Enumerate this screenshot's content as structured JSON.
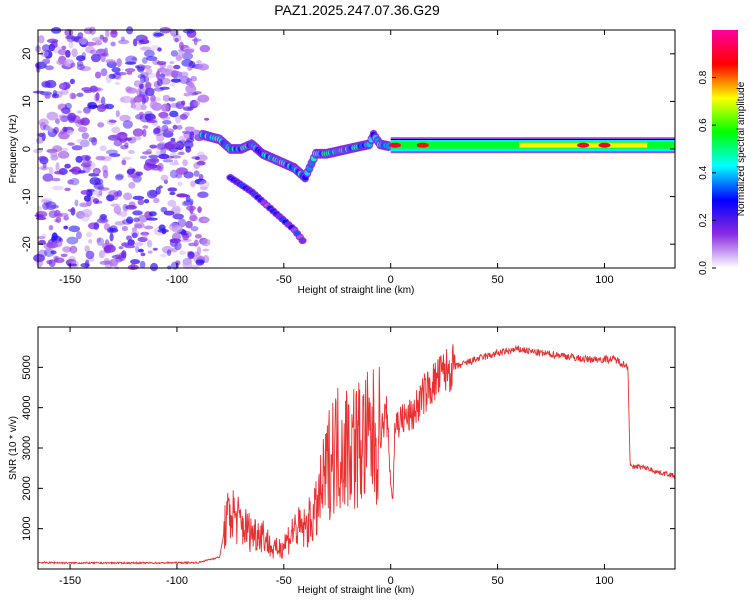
{
  "chart_data": [
    {
      "type": "heatmap",
      "title": "PAZ1.2025.247.07.36.G29",
      "xlabel": "Height of straight line (km)",
      "ylabel": "Frequency (Hz)",
      "xlim": [
        -165,
        133
      ],
      "ylim": [
        -25,
        25
      ],
      "xticks": [
        -150,
        -100,
        -50,
        0,
        50,
        100
      ],
      "yticks": [
        -20,
        -10,
        0,
        10,
        20
      ],
      "colorbar": {
        "label": "Normalized spectral amplitude",
        "range": [
          0,
          1
        ],
        "ticks": [
          0.0,
          0.2,
          0.4,
          0.6,
          0.8
        ],
        "colors": [
          "#ffffff",
          "#8a2be2",
          "#0000ff",
          "#00ffff",
          "#00ff00",
          "#ffff00",
          "#ff0000",
          "#ff00a0"
        ]
      },
      "noise_region": {
        "x": [
          -165,
          -86
        ],
        "y": [
          -25,
          25
        ],
        "amplitude": 0.15
      },
      "ridge": [
        {
          "x": -88,
          "y": 3
        },
        {
          "x": -80,
          "y": 2
        },
        {
          "x": -75,
          "y": 0
        },
        {
          "x": -70,
          "y": 0
        },
        {
          "x": -65,
          "y": 1
        },
        {
          "x": -60,
          "y": -1
        },
        {
          "x": -55,
          "y": -2
        },
        {
          "x": -50,
          "y": -3
        },
        {
          "x": -45,
          "y": -4
        },
        {
          "x": -40,
          "y": -6
        },
        {
          "x": -35,
          "y": -1
        },
        {
          "x": -30,
          "y": -1
        },
        {
          "x": -25,
          "y": -0.5
        },
        {
          "x": -20,
          "y": 0
        },
        {
          "x": -15,
          "y": 0.5
        },
        {
          "x": -10,
          "y": 1
        },
        {
          "x": -8,
          "y": 3
        },
        {
          "x": -5,
          "y": 1
        },
        {
          "x": 0,
          "y": 0.5
        },
        {
          "x": 20,
          "y": 0.5
        },
        {
          "x": 50,
          "y": 0.5
        },
        {
          "x": 80,
          "y": 1
        },
        {
          "x": 110,
          "y": 1
        },
        {
          "x": 133,
          "y": 1
        }
      ],
      "secondary_branch": [
        {
          "x": -75,
          "y": -6
        },
        {
          "x": -65,
          "y": -9
        },
        {
          "x": -55,
          "y": -13
        },
        {
          "x": -45,
          "y": -17
        },
        {
          "x": -40,
          "y": -20
        }
      ]
    },
    {
      "type": "line",
      "xlabel": "Height of straight line (km)",
      "ylabel": "SNR (10 * v/v)",
      "xlim": [
        -165,
        133
      ],
      "ylim": [
        0,
        6000
      ],
      "xticks": [
        -150,
        -100,
        -50,
        0,
        50,
        100
      ],
      "yticks": [
        1000,
        2000,
        3000,
        4000,
        5000
      ],
      "color": "#e83030",
      "x": [
        -165,
        -150,
        -130,
        -110,
        -90,
        -80,
        -77,
        -74,
        -70,
        -65,
        -60,
        -55,
        -50,
        -45,
        -40,
        -35,
        -30,
        -27,
        -25,
        -20,
        -15,
        -10,
        -5,
        -2,
        0,
        1,
        2,
        5,
        10,
        15,
        20,
        25,
        30,
        40,
        50,
        60,
        65,
        70,
        80,
        90,
        100,
        105,
        110,
        111,
        112,
        113,
        115,
        120,
        125,
        130,
        133
      ],
      "values": [
        160,
        150,
        150,
        150,
        160,
        300,
        1200,
        1400,
        1100,
        900,
        900,
        450,
        600,
        1000,
        1000,
        1400,
        2400,
        3000,
        3000,
        3100,
        3100,
        3200,
        3300,
        3900,
        2200,
        1700,
        3600,
        3700,
        3800,
        4300,
        4600,
        4900,
        5000,
        5200,
        5350,
        5450,
        5400,
        5350,
        5300,
        5200,
        5200,
        5200,
        5050,
        5000,
        2600,
        2500,
        2550,
        2500,
        2400,
        2350,
        2300
      ]
    }
  ]
}
